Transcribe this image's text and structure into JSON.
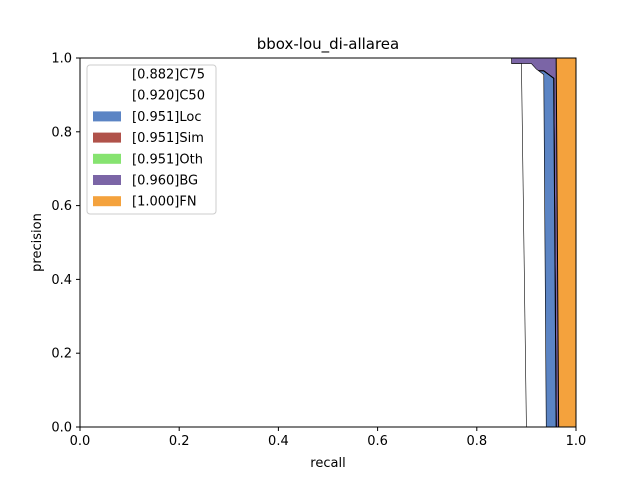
{
  "chart_data": {
    "type": "area",
    "title": "bbox-lou_di-allarea",
    "xlabel": "recall",
    "ylabel": "precision",
    "xlim": [
      0,
      1
    ],
    "ylim": [
      0,
      1
    ],
    "xticks": [
      "0.0",
      "0.2",
      "0.4",
      "0.6",
      "0.8",
      "1.0"
    ],
    "yticks": [
      "0.0",
      "0.2",
      "0.4",
      "0.6",
      "0.8",
      "1.0"
    ],
    "grid": false,
    "legend_position": "top-left",
    "series": [
      {
        "name": "[0.882]C75",
        "color": "#ffffff",
        "points": [
          [
            0,
            1
          ],
          [
            0.87,
            1
          ],
          [
            0.87,
            0.985
          ],
          [
            0.89,
            0.985
          ],
          [
            0.9,
            0
          ]
        ]
      },
      {
        "name": "[0.920]C50",
        "color": "#ffffff",
        "points": [
          [
            0,
            1
          ],
          [
            0.85,
            1
          ],
          [
            0.85,
            0.985
          ],
          [
            0.91,
            0.985
          ],
          [
            0.92,
            0.97
          ],
          [
            0.935,
            0.955
          ],
          [
            0.94,
            0
          ]
        ]
      },
      {
        "name": "[0.951]Loc",
        "color": "#5b84c4",
        "points": [
          [
            0,
            1
          ],
          [
            0.46,
            1
          ],
          [
            0.46,
            0.985
          ],
          [
            0.84,
            0.985
          ],
          [
            0.85,
            0.975
          ],
          [
            0.87,
            0.975
          ],
          [
            0.87,
            0.97
          ],
          [
            0.9,
            0.97
          ],
          [
            0.91,
            0.965
          ],
          [
            0.935,
            0.965
          ],
          [
            0.945,
            0.955
          ],
          [
            0.955,
            0.945
          ],
          [
            0.96,
            0
          ]
        ]
      },
      {
        "name": "[0.951]Sim",
        "color": "#b0524a",
        "points": [
          [
            0,
            1
          ],
          [
            0.46,
            1
          ],
          [
            0.46,
            0.985
          ],
          [
            0.84,
            0.985
          ],
          [
            0.85,
            0.975
          ],
          [
            0.87,
            0.975
          ],
          [
            0.87,
            0.97
          ],
          [
            0.9,
            0.97
          ],
          [
            0.91,
            0.965
          ],
          [
            0.935,
            0.965
          ],
          [
            0.945,
            0.955
          ],
          [
            0.955,
            0.945
          ],
          [
            0.96,
            0
          ]
        ]
      },
      {
        "name": "[0.951]Oth",
        "color": "#86e370",
        "points": [
          [
            0,
            1
          ],
          [
            0.46,
            1
          ],
          [
            0.46,
            0.985
          ],
          [
            0.84,
            0.985
          ],
          [
            0.85,
            0.975
          ],
          [
            0.87,
            0.975
          ],
          [
            0.87,
            0.97
          ],
          [
            0.9,
            0.97
          ],
          [
            0.91,
            0.965
          ],
          [
            0.935,
            0.965
          ],
          [
            0.945,
            0.955
          ],
          [
            0.955,
            0.945
          ],
          [
            0.96,
            0
          ]
        ]
      },
      {
        "name": "[0.960]BG",
        "color": "#7b65a6",
        "points": [
          [
            0,
            1
          ],
          [
            0.96,
            1
          ],
          [
            0.965,
            0
          ]
        ]
      },
      {
        "name": "[1.000]FN",
        "color": "#f4a23d",
        "points": [
          [
            0,
            1
          ],
          [
            1,
            1
          ],
          [
            1,
            0
          ]
        ]
      }
    ]
  }
}
